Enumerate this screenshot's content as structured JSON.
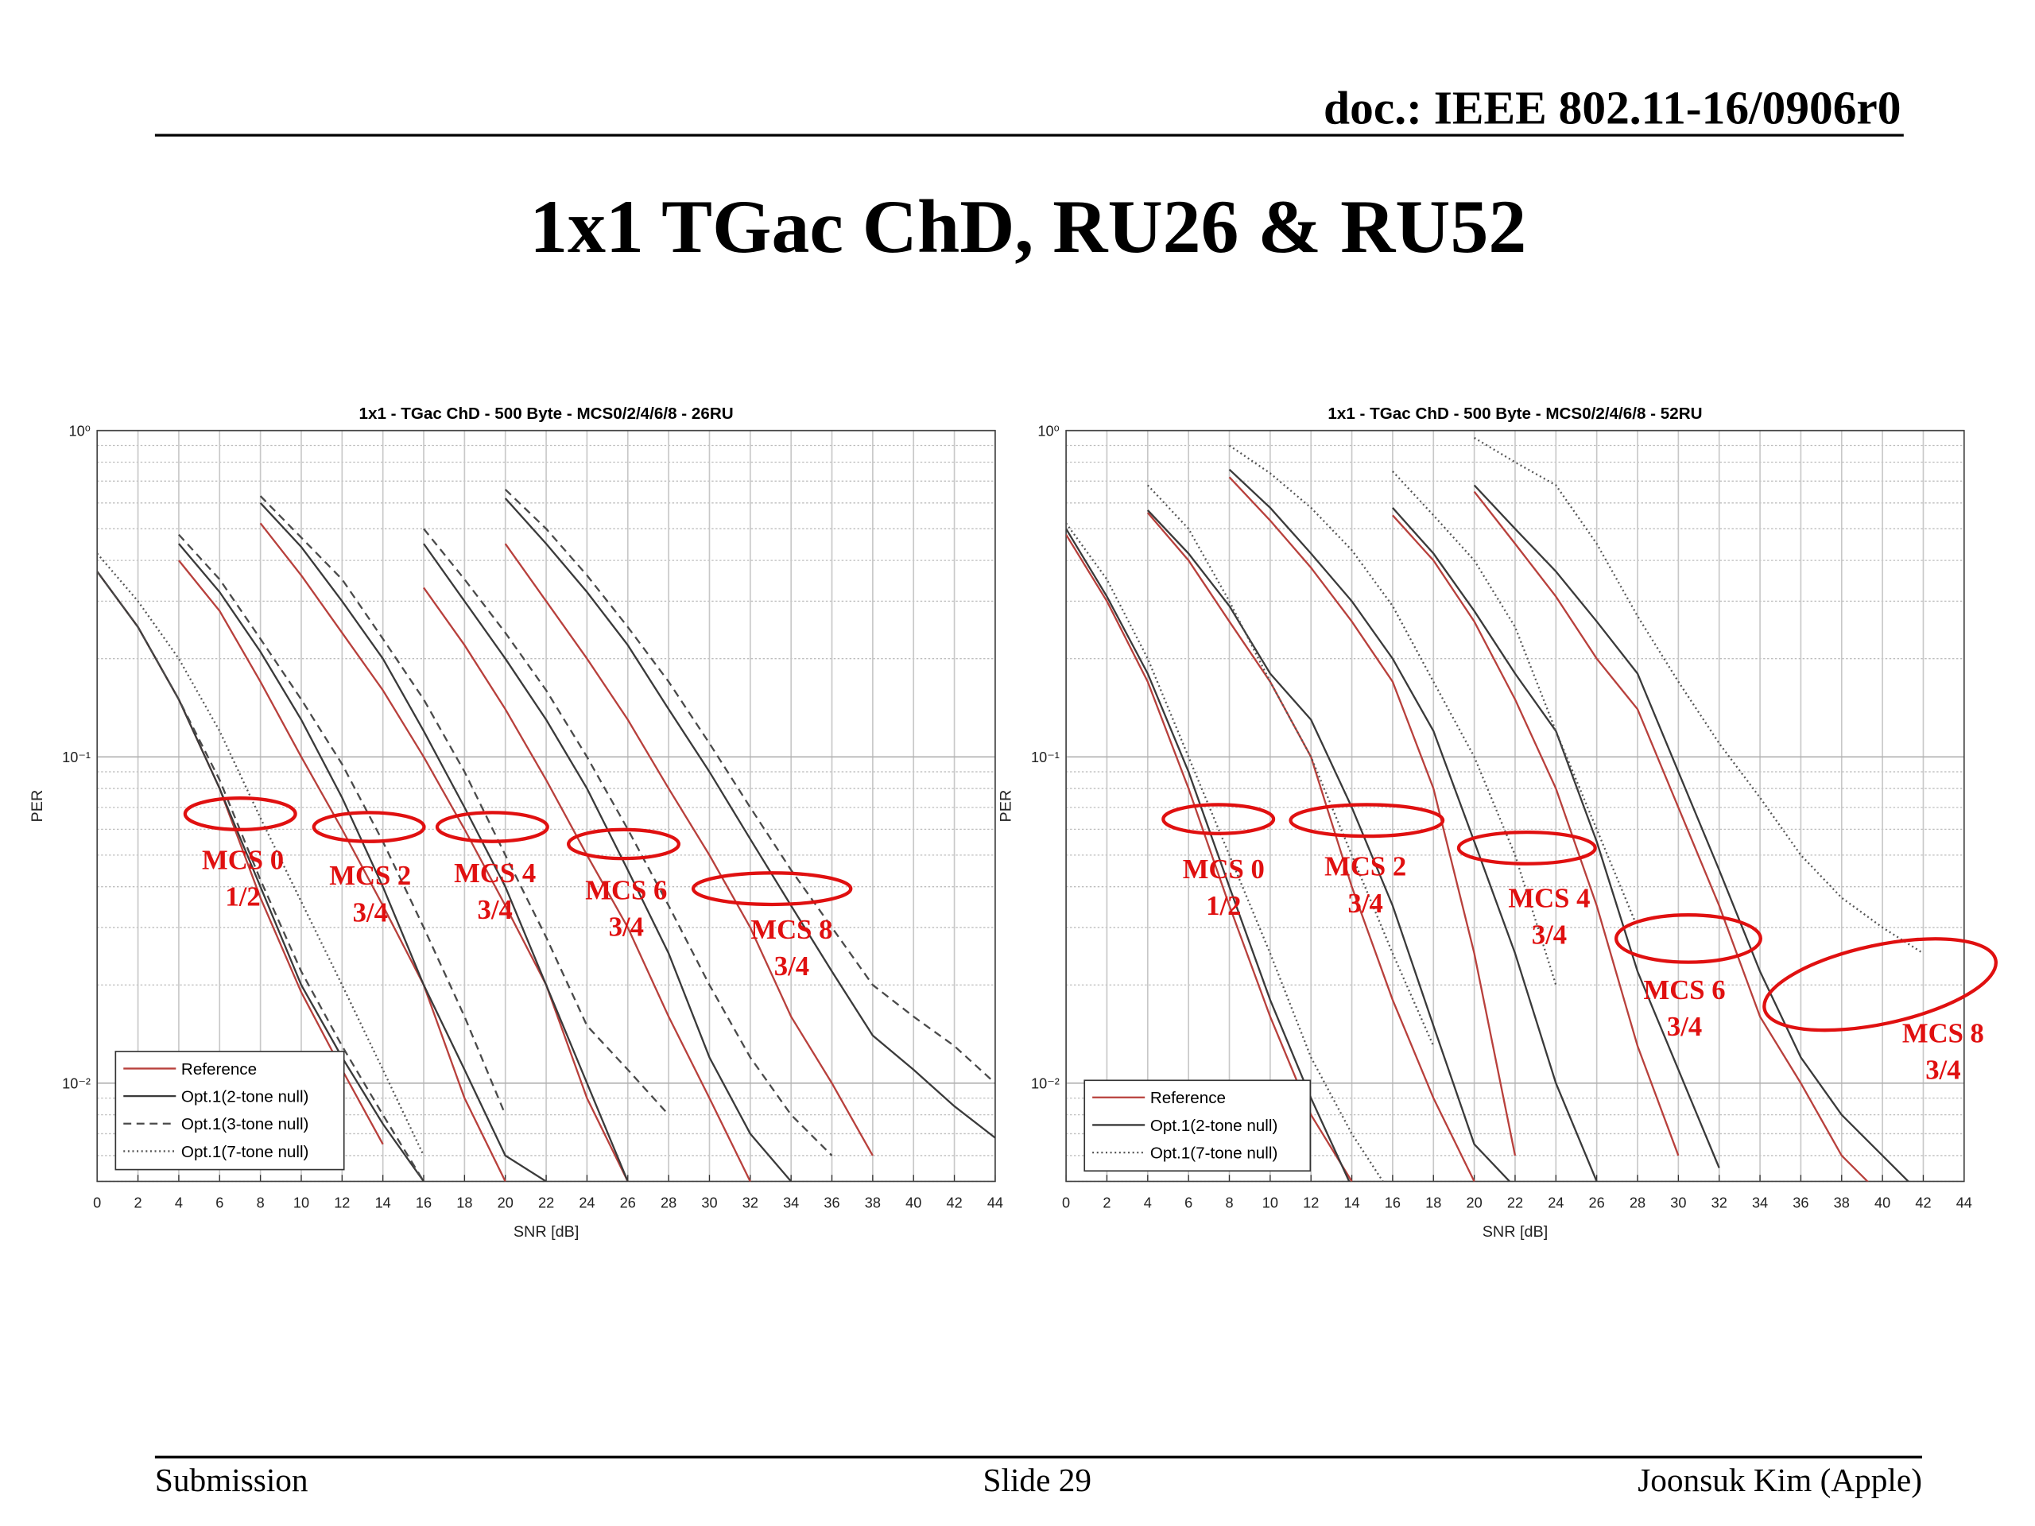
{
  "header": {
    "doc": "doc.: IEEE 802.11-16/0906r0"
  },
  "title": "1x1 TGac ChD, RU26 & RU52",
  "chart_data": [
    {
      "type": "line",
      "title": "1x1 - TGac ChD - 500 Byte - MCS0/2/4/6/8 - 26RU",
      "xlabel": "SNR [dB]",
      "ylabel": "PER",
      "yscale": "log",
      "grid": true,
      "minor_grid": true,
      "legend": "lower left",
      "xlim": [
        0,
        44
      ],
      "xticks": [
        0,
        2,
        4,
        6,
        8,
        10,
        12,
        14,
        16,
        18,
        20,
        22,
        24,
        26,
        28,
        30,
        32,
        34,
        36,
        38,
        40,
        42,
        44
      ],
      "ylim": [
        0.005,
        1
      ],
      "yticks": [
        {
          "value": 0.01,
          "label": "10⁻²"
        },
        {
          "value": 0.1,
          "label": "10⁻¹"
        },
        {
          "value": 1,
          "label": "10⁰"
        }
      ],
      "series": [
        {
          "name": "Reference",
          "color": "#b8403c",
          "style": "solid",
          "x": [
            0,
            2,
            4,
            6,
            8,
            10,
            12,
            14,
            null,
            4,
            6,
            8,
            10,
            12,
            14,
            16,
            18,
            20,
            null,
            8,
            10,
            12,
            14,
            16,
            18,
            20,
            22,
            24,
            26,
            null,
            16,
            18,
            20,
            22,
            24,
            26,
            28,
            30,
            32,
            null,
            20,
            22,
            24,
            26,
            28,
            30,
            32,
            34,
            36,
            38
          ],
          "values": [
            0.37,
            0.25,
            0.15,
            0.08,
            0.037,
            0.019,
            0.011,
            0.0065,
            null,
            0.4,
            0.28,
            0.17,
            0.1,
            0.06,
            0.035,
            0.02,
            0.009,
            0.005,
            null,
            0.52,
            0.36,
            0.24,
            0.16,
            0.1,
            0.06,
            0.035,
            0.02,
            0.009,
            0.005,
            null,
            0.33,
            0.22,
            0.14,
            0.085,
            0.05,
            0.03,
            0.016,
            0.009,
            0.005,
            null,
            0.45,
            0.3,
            0.2,
            0.13,
            0.08,
            0.05,
            0.03,
            0.016,
            0.01,
            0.006
          ]
        },
        {
          "name": "Opt.1(2-tone null)",
          "color": "#3a3a3a",
          "style": "solid",
          "x": [
            0,
            2,
            4,
            6,
            8,
            10,
            12,
            14,
            16,
            null,
            4,
            6,
            8,
            10,
            12,
            14,
            16,
            18,
            20,
            22,
            null,
            8,
            10,
            12,
            14,
            16,
            18,
            20,
            22,
            24,
            26,
            null,
            16,
            18,
            20,
            22,
            24,
            26,
            28,
            30,
            32,
            34,
            null,
            20,
            22,
            24,
            26,
            28,
            30,
            32,
            34,
            36,
            38,
            40,
            42,
            44
          ],
          "values": [
            0.37,
            0.25,
            0.15,
            0.08,
            0.04,
            0.02,
            0.012,
            0.0075,
            0.005,
            null,
            0.45,
            0.32,
            0.21,
            0.13,
            0.075,
            0.04,
            0.02,
            0.011,
            0.006,
            0.005,
            null,
            0.6,
            0.44,
            0.3,
            0.2,
            0.12,
            0.07,
            0.04,
            0.02,
            0.01,
            0.005,
            null,
            0.45,
            0.3,
            0.2,
            0.13,
            0.08,
            0.045,
            0.025,
            0.012,
            0.007,
            0.005,
            null,
            0.62,
            0.45,
            0.32,
            0.22,
            0.14,
            0.09,
            0.056,
            0.035,
            0.022,
            0.014,
            0.011,
            0.0085,
            0.0068
          ]
        },
        {
          "name": "Opt.1(3-tone null)",
          "color": "#4a4a4a",
          "style": "dashed",
          "x": [
            0,
            2,
            4,
            6,
            8,
            10,
            12,
            14,
            16,
            null,
            4,
            6,
            8,
            10,
            12,
            14,
            16,
            18,
            20,
            null,
            8,
            10,
            12,
            14,
            16,
            18,
            20,
            22,
            24,
            26,
            28,
            null,
            16,
            18,
            20,
            22,
            24,
            26,
            28,
            30,
            32,
            34,
            36,
            null,
            20,
            22,
            24,
            26,
            28,
            30,
            32,
            34,
            36,
            38,
            40,
            42,
            44
          ],
          "values": [
            0.37,
            0.25,
            0.15,
            0.085,
            0.042,
            0.022,
            0.013,
            0.008,
            0.005,
            null,
            0.48,
            0.35,
            0.23,
            0.15,
            0.095,
            0.055,
            0.03,
            0.016,
            0.008,
            null,
            0.63,
            0.47,
            0.35,
            0.23,
            0.15,
            0.09,
            0.05,
            0.028,
            0.015,
            0.011,
            0.008,
            null,
            0.5,
            0.35,
            0.24,
            0.16,
            0.1,
            0.06,
            0.035,
            0.02,
            0.012,
            0.008,
            0.006,
            null,
            0.66,
            0.5,
            0.36,
            0.25,
            0.17,
            0.11,
            0.07,
            0.045,
            0.03,
            0.02,
            0.016,
            0.013,
            0.01
          ]
        },
        {
          "name": "Opt.1(7-tone null)",
          "color": "#555555",
          "style": "dotted",
          "x": [
            0,
            2,
            4,
            6,
            8,
            10,
            12,
            14,
            16
          ],
          "values": [
            0.42,
            0.3,
            0.2,
            0.12,
            0.065,
            0.036,
            0.02,
            0.011,
            0.006
          ]
        }
      ],
      "annotations": [
        [
          "MCS 0",
          "1/2"
        ],
        [
          "MCS 2",
          "3/4"
        ],
        [
          "MCS 4",
          "3/4"
        ],
        [
          "MCS 6",
          "3/4"
        ],
        [
          "MCS 8",
          "3/4"
        ]
      ]
    },
    {
      "type": "line",
      "title": "1x1 - TGac ChD - 500 Byte - MCS0/2/4/6/8 - 52RU",
      "xlabel": "SNR [dB]",
      "ylabel": "PER",
      "yscale": "log",
      "grid": true,
      "minor_grid": true,
      "legend": "lower left",
      "xlim": [
        0,
        44
      ],
      "xticks": [
        0,
        2,
        4,
        6,
        8,
        10,
        12,
        14,
        16,
        18,
        20,
        22,
        24,
        26,
        28,
        30,
        32,
        34,
        36,
        38,
        40,
        42,
        44
      ],
      "ylim": [
        0.005,
        1
      ],
      "yticks": [
        {
          "value": 0.01,
          "label": "10⁻²"
        },
        {
          "value": 0.1,
          "label": "10⁻¹"
        },
        {
          "value": 1,
          "label": "10⁰"
        }
      ],
      "series": [
        {
          "name": "Reference",
          "color": "#b8403c",
          "style": "solid",
          "x": [
            0,
            2,
            4,
            6,
            8,
            10,
            12,
            14,
            null,
            4,
            6,
            8,
            10,
            12,
            14,
            16,
            18,
            20,
            null,
            8,
            10,
            12,
            14,
            16,
            18,
            20,
            22,
            null,
            16,
            18,
            20,
            22,
            24,
            26,
            28,
            30,
            null,
            20,
            22,
            24,
            26,
            28,
            30,
            32,
            34,
            36,
            38,
            40
          ],
          "values": [
            0.48,
            0.3,
            0.17,
            0.08,
            0.035,
            0.016,
            0.008,
            0.005,
            null,
            0.56,
            0.4,
            0.26,
            0.17,
            0.1,
            0.04,
            0.018,
            0.009,
            0.005,
            null,
            0.72,
            0.53,
            0.38,
            0.26,
            0.17,
            0.08,
            0.025,
            0.006,
            null,
            0.55,
            0.4,
            0.26,
            0.15,
            0.08,
            0.035,
            0.013,
            0.006,
            null,
            0.65,
            0.45,
            0.31,
            0.2,
            0.14,
            0.07,
            0.035,
            0.016,
            0.01,
            0.006,
            0.0045
          ]
        },
        {
          "name": "Opt.1(2-tone null)",
          "color": "#3a3a3a",
          "style": "solid",
          "x": [
            0,
            2,
            4,
            6,
            8,
            10,
            12,
            14,
            null,
            4,
            6,
            8,
            10,
            12,
            14,
            16,
            18,
            20,
            22,
            null,
            8,
            10,
            12,
            14,
            16,
            18,
            20,
            22,
            24,
            26,
            null,
            16,
            18,
            20,
            22,
            24,
            26,
            28,
            30,
            32,
            null,
            20,
            22,
            24,
            26,
            28,
            30,
            32,
            34,
            36,
            38,
            40,
            42
          ],
          "values": [
            0.5,
            0.31,
            0.18,
            0.09,
            0.04,
            0.018,
            0.009,
            0.0048,
            null,
            0.57,
            0.42,
            0.29,
            0.18,
            0.13,
            0.07,
            0.035,
            0.015,
            0.0065,
            0.0048,
            null,
            0.76,
            0.58,
            0.42,
            0.3,
            0.2,
            0.12,
            0.055,
            0.025,
            0.01,
            0.005,
            null,
            0.58,
            0.42,
            0.28,
            0.18,
            0.12,
            0.055,
            0.022,
            0.011,
            0.0055,
            null,
            0.68,
            0.5,
            0.37,
            0.26,
            0.18,
            0.09,
            0.045,
            0.022,
            0.012,
            0.008,
            0.006,
            0.0045
          ]
        },
        {
          "name": "Opt.1(7-tone null)",
          "color": "#555555",
          "style": "dotted",
          "x": [
            0,
            2,
            4,
            6,
            8,
            10,
            12,
            14,
            16,
            null,
            4,
            6,
            8,
            10,
            12,
            14,
            16,
            18,
            null,
            8,
            10,
            12,
            14,
            16,
            18,
            20,
            22,
            24,
            null,
            16,
            18,
            20,
            22,
            24,
            26,
            28,
            null,
            20,
            22,
            24,
            26,
            28,
            30,
            32,
            34,
            36,
            38,
            40,
            42
          ],
          "values": [
            0.52,
            0.35,
            0.2,
            0.1,
            0.05,
            0.025,
            0.012,
            0.007,
            0.0045,
            null,
            0.68,
            0.5,
            0.3,
            0.17,
            0.1,
            0.05,
            0.025,
            0.013,
            null,
            0.9,
            0.74,
            0.58,
            0.43,
            0.29,
            0.17,
            0.1,
            0.05,
            0.02,
            null,
            0.75,
            0.55,
            0.4,
            0.25,
            0.12,
            0.06,
            0.03,
            null,
            0.95,
            0.8,
            0.68,
            0.45,
            0.27,
            0.17,
            0.11,
            0.075,
            0.05,
            0.037,
            0.03,
            0.025
          ]
        }
      ],
      "annotations": [
        [
          "MCS 0",
          "1/2"
        ],
        [
          "MCS 2",
          "3/4"
        ],
        [
          "MCS 4",
          "3/4"
        ],
        [
          "MCS 6",
          "3/4"
        ],
        [
          "MCS 8",
          "3/4"
        ]
      ]
    }
  ],
  "footer": {
    "left": "Submission",
    "center": "Slide 29",
    "right": "Joonsuk Kim (Apple)"
  }
}
